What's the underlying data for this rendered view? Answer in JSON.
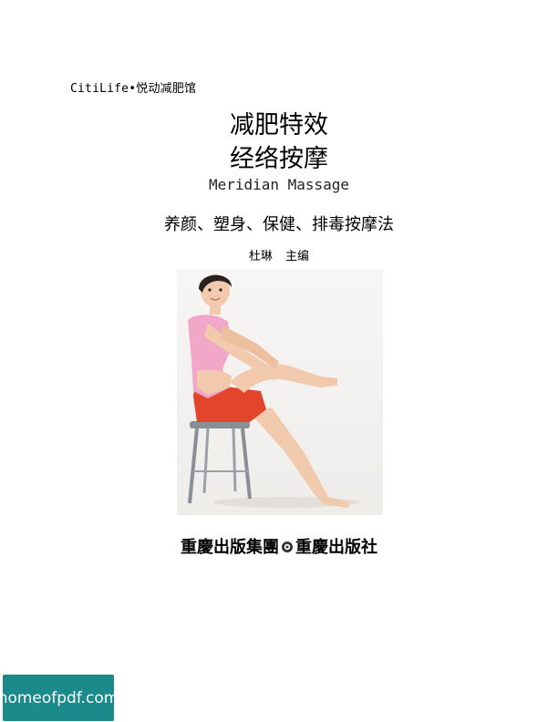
{
  "cover": {
    "series": "CitiLife•悦动减肥馆",
    "title_line1": "减肥特效",
    "title_line2": "经络按摩",
    "title_en": "Meridian Massage",
    "tagline": "养颜、塑身、保健、排毒按摩法",
    "editor": "杜琳 主编",
    "publisher_left": "重慶出版集團",
    "publisher_right": "重慶出版社"
  },
  "watermark": {
    "text": "homeofpdf.com"
  },
  "colors": {
    "shirt": "#f2a6c8",
    "shorts": "#e2452c",
    "skin": "#f1c9ad",
    "watermark_bg": "#1a8a8a"
  }
}
